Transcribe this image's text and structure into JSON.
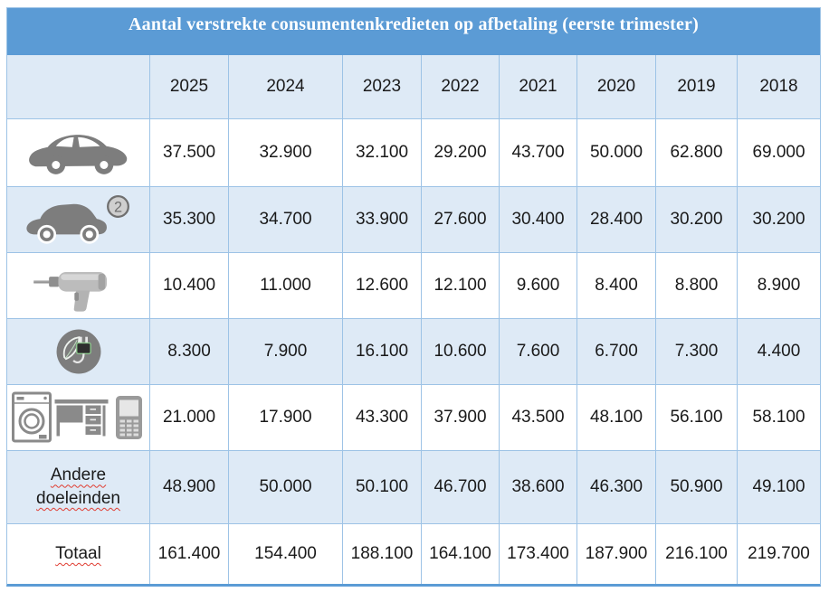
{
  "title": "Aantal verstrekte consumentenkredieten op afbetaling (eerste trimester)",
  "years": [
    "2025",
    "2024",
    "2023",
    "2022",
    "2021",
    "2020",
    "2019",
    "2018"
  ],
  "rows": [
    {
      "icon": "new-car-icon",
      "label": "",
      "values": [
        "37.500",
        "32.900",
        "32.100",
        "29.200",
        "43.700",
        "50.000",
        "62.800",
        "69.000"
      ]
    },
    {
      "icon": "second-hand-car-icon",
      "label": "",
      "values": [
        "35.300",
        "34.700",
        "33.900",
        "27.600",
        "30.400",
        "28.400",
        "30.200",
        "30.200"
      ]
    },
    {
      "icon": "drill-icon",
      "label": "",
      "values": [
        "10.400",
        "11.000",
        "12.600",
        "12.100",
        "9.600",
        "8.400",
        "8.800",
        "8.900"
      ]
    },
    {
      "icon": "green-energy-icon",
      "label": "",
      "values": [
        "8.300",
        "7.900",
        "16.100",
        "10.600",
        "7.600",
        "6.700",
        "7.300",
        "4.400"
      ]
    },
    {
      "icon": "appliances-icon",
      "label": "",
      "values": [
        "21.000",
        "17.900",
        "43.300",
        "37.900",
        "43.500",
        "48.100",
        "56.100",
        "58.100"
      ]
    },
    {
      "icon": "",
      "label": "Andere doeleinden",
      "values": [
        "48.900",
        "50.000",
        "50.100",
        "46.700",
        "38.600",
        "46.300",
        "50.900",
        "49.100"
      ]
    },
    {
      "icon": "",
      "label": "Totaal",
      "values": [
        "161.400",
        "154.400",
        "188.100",
        "164.100",
        "173.400",
        "187.900",
        "216.100",
        "219.700"
      ]
    }
  ],
  "second_hand_badge": "2",
  "colors": {
    "header_bg": "#5B9BD5",
    "band_bg": "#DEEAF6",
    "border_col": "#9DC3E6",
    "bottom_border": "#5B9BD5",
    "title_text": "#FFFFFF",
    "cell_text": "#1A1A1A",
    "spellcheck": "#E03C31",
    "icon_gray": "#7D7D7D"
  }
}
